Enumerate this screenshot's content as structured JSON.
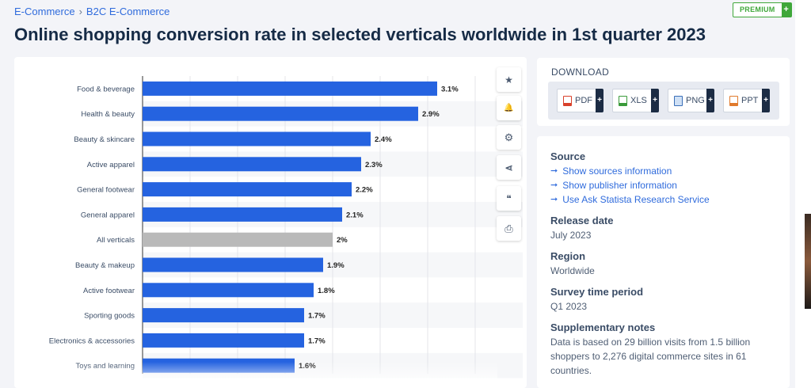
{
  "breadcrumb": {
    "item1": "E-Commerce",
    "item2": "B2C E-Commerce"
  },
  "premium": {
    "label": "PREMIUM",
    "plus": "+"
  },
  "title": "Online shopping conversion rate in selected verticals worldwide in 1st quarter 2023",
  "tools": [
    {
      "name": "star-icon",
      "glyph": "★"
    },
    {
      "name": "bell-icon",
      "glyph": "🔔"
    },
    {
      "name": "gear-icon",
      "glyph": "⚙"
    },
    {
      "name": "share-icon",
      "glyph": "⋖"
    },
    {
      "name": "quote-icon",
      "glyph": "❝"
    },
    {
      "name": "print-icon",
      "glyph": "⎙"
    }
  ],
  "download": {
    "title": "DOWNLOAD",
    "buttons": [
      {
        "label": "PDF",
        "color": "#d9412b"
      },
      {
        "label": "XLS",
        "color": "#3a9a3a"
      },
      {
        "label": "PNG",
        "color": "#3a6fb8"
      },
      {
        "label": "PPT",
        "color": "#e07a2c"
      }
    ]
  },
  "source": {
    "heading": "Source",
    "links": [
      "Show sources information",
      "Show publisher information",
      "Use Ask Statista Research Service"
    ]
  },
  "release": {
    "heading": "Release date",
    "value": "July 2023"
  },
  "region": {
    "heading": "Region",
    "value": "Worldwide"
  },
  "period": {
    "heading": "Survey time period",
    "value": "Q1 2023"
  },
  "notes": {
    "heading": "Supplementary notes",
    "value": "Data is based on 29 billion visits from 1.5 billion shoppers to 2,276 digital commerce sites in 61 countries."
  },
  "colors": {
    "accent": "#2f6bdc",
    "bar": "#2563e0",
    "highlight": "#b9b9b9"
  },
  "chart_data": {
    "type": "bar",
    "orientation": "horizontal",
    "categories": [
      "Food & beverage",
      "Health & beauty",
      "Beauty & skincare",
      "Active apparel",
      "General footwear",
      "General apparel",
      "All verticals",
      "Beauty & makeup",
      "Active footwear",
      "Sporting goods",
      "Electronics & accessories",
      "Toys and learning"
    ],
    "values": [
      3.1,
      2.9,
      2.4,
      2.3,
      2.2,
      2.1,
      2,
      1.9,
      1.8,
      1.7,
      1.7,
      1.6
    ],
    "labels": [
      "3.1%",
      "2.9%",
      "2.4%",
      "2.3%",
      "2.2%",
      "2.1%",
      "2%",
      "1.9%",
      "1.8%",
      "1.7%",
      "1.7%",
      "1.6%"
    ],
    "highlight_category": "All verticals",
    "xlim": [
      0,
      3.5
    ],
    "grid": true
  }
}
